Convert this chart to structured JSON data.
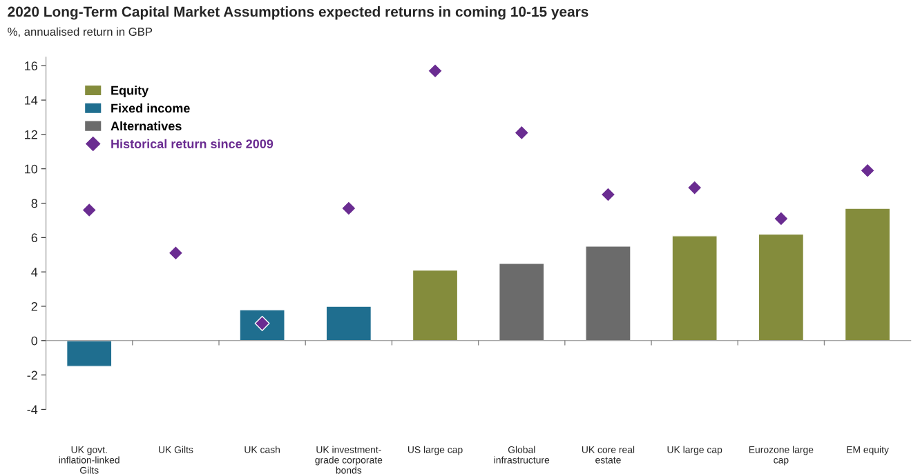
{
  "chart_data": {
    "type": "bar",
    "title": "2020 Long-Term Capital Market Assumptions expected returns in coming 10-15 years",
    "subtitle": "%, annualised return in GBP",
    "categories": [
      "UK govt.\ninflation-linked\nGilts",
      "UK Gilts",
      "UK cash",
      "UK investment-\ngrade corporate\nbonds",
      "US large cap",
      "Global\ninfrastructure",
      "UK core real\nestate",
      "UK large cap",
      "Eurozone large\ncap",
      "EM equity"
    ],
    "series": [
      {
        "name": "Equity",
        "color": "#848c3c",
        "values": [
          null,
          null,
          null,
          null,
          4.1,
          null,
          null,
          6.1,
          6.2,
          7.7
        ]
      },
      {
        "name": "Fixed income",
        "color": "#1f6e8f",
        "values": [
          -1.5,
          null,
          1.8,
          2.0,
          null,
          null,
          null,
          null,
          null,
          null
        ]
      },
      {
        "name": "Alternatives",
        "color": "#6b6b6b",
        "values": [
          null,
          null,
          null,
          null,
          null,
          4.5,
          5.5,
          null,
          null,
          null
        ]
      },
      {
        "name": "Historical return since 2009",
        "color": "#6a2c91",
        "type": "scatter",
        "marker": "diamond",
        "values": [
          7.6,
          5.1,
          1.0,
          7.7,
          15.7,
          12.1,
          8.5,
          8.9,
          7.1,
          9.9
        ]
      }
    ],
    "ylim": [
      -4,
      16.5
    ],
    "yticks": [
      -4,
      -2,
      0,
      2,
      4,
      6,
      8,
      10,
      12,
      14,
      16
    ],
    "legend": "top left"
  }
}
